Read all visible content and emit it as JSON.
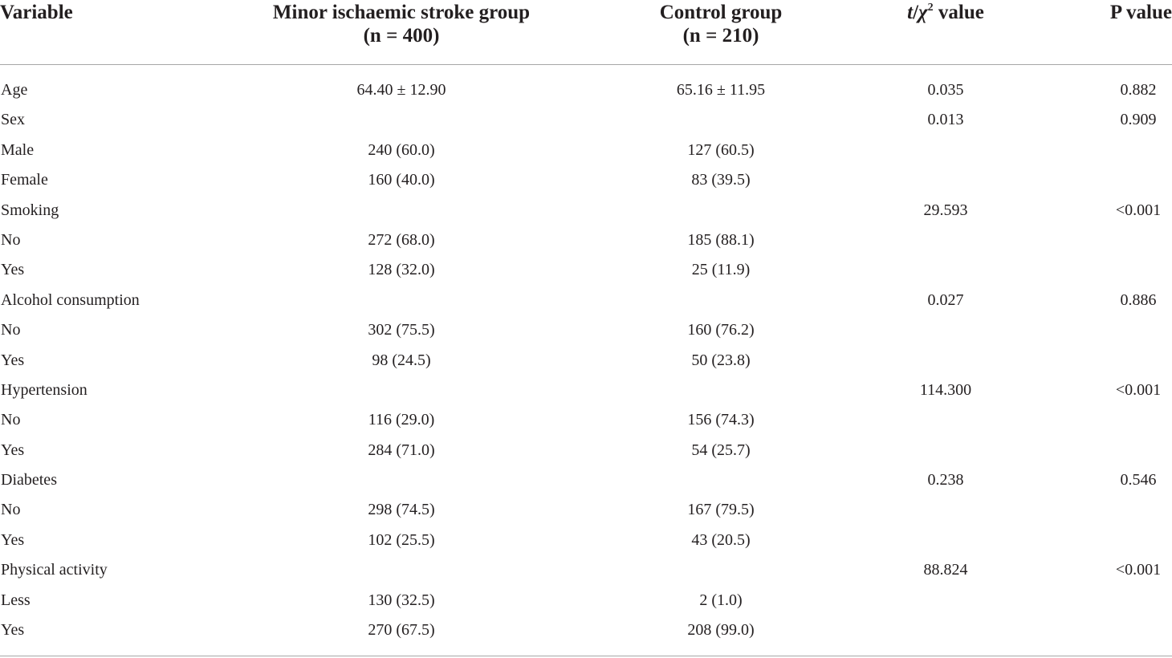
{
  "header": {
    "variable": "Variable",
    "minor_line1": "Minor ischaemic stroke group",
    "minor_line2": "(n = 400)",
    "control_line1": "Control group",
    "control_line2": "(n = 210)",
    "t_italic": "t",
    "t_slash": "/",
    "t_chi": "χ",
    "t_sup": "2",
    "t_rest": " value",
    "p_value": "P value"
  },
  "rows": [
    {
      "variable": "Age",
      "minor": "64.40 ± 12.90",
      "control": "65.16 ± 11.95",
      "t": "0.035",
      "p": "0.882"
    },
    {
      "variable": "Sex",
      "minor": "",
      "control": "",
      "t": "0.013",
      "p": "0.909"
    },
    {
      "variable": "Male",
      "minor": "240 (60.0)",
      "control": "127 (60.5)",
      "t": "",
      "p": ""
    },
    {
      "variable": "Female",
      "minor": "160 (40.0)",
      "control": "83 (39.5)",
      "t": "",
      "p": ""
    },
    {
      "variable": "Smoking",
      "minor": "",
      "control": "",
      "t": "29.593",
      "p": "<0.001"
    },
    {
      "variable": "No",
      "minor": "272 (68.0)",
      "control": "185 (88.1)",
      "t": "",
      "p": ""
    },
    {
      "variable": "Yes",
      "minor": "128 (32.0)",
      "control": "25 (11.9)",
      "t": "",
      "p": ""
    },
    {
      "variable": "Alcohol consumption",
      "minor": "",
      "control": "",
      "t": "0.027",
      "p": "0.886"
    },
    {
      "variable": "No",
      "minor": "302 (75.5)",
      "control": "160 (76.2)",
      "t": "",
      "p": ""
    },
    {
      "variable": "Yes",
      "minor": "98 (24.5)",
      "control": "50 (23.8)",
      "t": "",
      "p": ""
    },
    {
      "variable": "Hypertension",
      "minor": "",
      "control": "",
      "t": "114.300",
      "p": "<0.001"
    },
    {
      "variable": "No",
      "minor": "116 (29.0)",
      "control": "156 (74.3)",
      "t": "",
      "p": ""
    },
    {
      "variable": "Yes",
      "minor": "284 (71.0)",
      "control": "54 (25.7)",
      "t": "",
      "p": ""
    },
    {
      "variable": "Diabetes",
      "minor": "",
      "control": "",
      "t": "0.238",
      "p": "0.546"
    },
    {
      "variable": "No",
      "minor": "298 (74.5)",
      "control": "167 (79.5)",
      "t": "",
      "p": ""
    },
    {
      "variable": "Yes",
      "minor": "102 (25.5)",
      "control": "43 (20.5)",
      "t": "",
      "p": ""
    },
    {
      "variable": "Physical activity",
      "minor": "",
      "control": "",
      "t": "88.824",
      "p": "<0.001"
    },
    {
      "variable": "Less",
      "minor": "130 (32.5)",
      "control": "2 (1.0)",
      "t": "",
      "p": ""
    },
    {
      "variable": "Yes",
      "minor": "270 (67.5)",
      "control": "208 (99.0)",
      "t": "",
      "p": ""
    }
  ]
}
